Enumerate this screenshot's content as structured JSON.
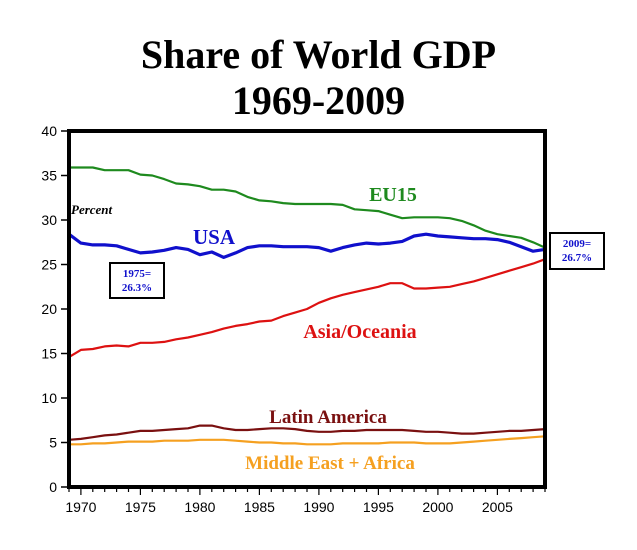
{
  "chart_data": {
    "type": "line",
    "title": [
      "Share of World GDP",
      "1969-2009"
    ],
    "ylabel_annotation": "Percent",
    "ylim": [
      0,
      40
    ],
    "xlim": [
      1969,
      2009
    ],
    "y_ticks": [
      0,
      5,
      10,
      15,
      20,
      25,
      30,
      35,
      40
    ],
    "x_ticks": [
      1970,
      1975,
      1980,
      1985,
      1990,
      1995,
      2000,
      2005
    ],
    "grid": false,
    "series": [
      {
        "name": "EU15",
        "color": "#1e8a1e",
        "x": [
          1969,
          1970,
          1971,
          1972,
          1973,
          1974,
          1975,
          1976,
          1977,
          1978,
          1979,
          1980,
          1981,
          1982,
          1983,
          1984,
          1985,
          1986,
          1987,
          1988,
          1989,
          1990,
          1991,
          1992,
          1993,
          1994,
          1995,
          1996,
          1997,
          1998,
          1999,
          2000,
          2001,
          2002,
          2003,
          2004,
          2005,
          2006,
          2007,
          2008,
          2009
        ],
        "values": [
          35.9,
          35.9,
          35.9,
          35.6,
          35.6,
          35.6,
          35.1,
          35.0,
          34.6,
          34.1,
          34.0,
          33.8,
          33.4,
          33.4,
          33.2,
          32.6,
          32.2,
          32.1,
          31.9,
          31.8,
          31.8,
          31.8,
          31.8,
          31.7,
          31.2,
          31.1,
          31.0,
          30.6,
          30.2,
          30.3,
          30.3,
          30.3,
          30.2,
          29.9,
          29.4,
          28.8,
          28.4,
          28.2,
          28.0,
          27.5,
          26.9
        ]
      },
      {
        "name": "USA",
        "color": "#1010cc",
        "x": [
          1969,
          1970,
          1971,
          1972,
          1973,
          1974,
          1975,
          1976,
          1977,
          1978,
          1979,
          1980,
          1981,
          1982,
          1983,
          1984,
          1985,
          1986,
          1987,
          1988,
          1989,
          1990,
          1991,
          1992,
          1993,
          1994,
          1995,
          1996,
          1997,
          1998,
          1999,
          2000,
          2001,
          2002,
          2003,
          2004,
          2005,
          2006,
          2007,
          2008,
          2009
        ],
        "values": [
          28.4,
          27.4,
          27.2,
          27.2,
          27.1,
          26.7,
          26.3,
          26.4,
          26.6,
          26.9,
          26.7,
          26.1,
          26.4,
          25.8,
          26.3,
          26.9,
          27.1,
          27.1,
          27.0,
          27.0,
          27.0,
          26.9,
          26.5,
          26.9,
          27.2,
          27.4,
          27.3,
          27.4,
          27.6,
          28.2,
          28.4,
          28.2,
          28.1,
          28.0,
          27.9,
          27.9,
          27.8,
          27.5,
          27.0,
          26.5,
          26.7
        ]
      },
      {
        "name": "Asia/Oceania",
        "color": "#dd1111",
        "x": [
          1969,
          1970,
          1971,
          1972,
          1973,
          1974,
          1975,
          1976,
          1977,
          1978,
          1979,
          1980,
          1981,
          1982,
          1983,
          1984,
          1985,
          1986,
          1987,
          1988,
          1989,
          1990,
          1991,
          1992,
          1993,
          1994,
          1995,
          1996,
          1997,
          1998,
          1999,
          2000,
          2001,
          2002,
          2003,
          2004,
          2005,
          2006,
          2007,
          2008,
          2009
        ],
        "values": [
          14.6,
          15.4,
          15.5,
          15.8,
          15.9,
          15.8,
          16.2,
          16.2,
          16.3,
          16.6,
          16.8,
          17.1,
          17.4,
          17.8,
          18.1,
          18.3,
          18.6,
          18.7,
          19.2,
          19.6,
          20.0,
          20.7,
          21.2,
          21.6,
          21.9,
          22.2,
          22.5,
          22.9,
          22.9,
          22.3,
          22.3,
          22.4,
          22.5,
          22.8,
          23.1,
          23.5,
          23.9,
          24.3,
          24.7,
          25.1,
          25.6
        ]
      },
      {
        "name": "Latin America",
        "color": "#7a1010",
        "x": [
          1969,
          1970,
          1971,
          1972,
          1973,
          1974,
          1975,
          1976,
          1977,
          1978,
          1979,
          1980,
          1981,
          1982,
          1983,
          1984,
          1985,
          1986,
          1987,
          1988,
          1989,
          1990,
          1991,
          1992,
          1993,
          1994,
          1995,
          1996,
          1997,
          1998,
          1999,
          2000,
          2001,
          2002,
          2003,
          2004,
          2005,
          2006,
          2007,
          2008,
          2009
        ],
        "values": [
          5.3,
          5.4,
          5.6,
          5.8,
          5.9,
          6.1,
          6.3,
          6.3,
          6.4,
          6.5,
          6.6,
          6.9,
          6.9,
          6.6,
          6.4,
          6.4,
          6.5,
          6.6,
          6.6,
          6.5,
          6.3,
          6.2,
          6.2,
          6.3,
          6.3,
          6.4,
          6.4,
          6.4,
          6.4,
          6.3,
          6.2,
          6.2,
          6.1,
          6.0,
          6.0,
          6.1,
          6.2,
          6.3,
          6.3,
          6.4,
          6.5
        ]
      },
      {
        "name": "Middle East + Africa",
        "color": "#f5a020",
        "x": [
          1969,
          1970,
          1971,
          1972,
          1973,
          1974,
          1975,
          1976,
          1977,
          1978,
          1979,
          1980,
          1981,
          1982,
          1983,
          1984,
          1985,
          1986,
          1987,
          1988,
          1989,
          1990,
          1991,
          1992,
          1993,
          1994,
          1995,
          1996,
          1997,
          1998,
          1999,
          2000,
          2001,
          2002,
          2003,
          2004,
          2005,
          2006,
          2007,
          2008,
          2009
        ],
        "values": [
          4.8,
          4.8,
          4.9,
          4.9,
          5.0,
          5.1,
          5.1,
          5.1,
          5.2,
          5.2,
          5.2,
          5.3,
          5.3,
          5.3,
          5.2,
          5.1,
          5.0,
          5.0,
          4.9,
          4.9,
          4.8,
          4.8,
          4.8,
          4.9,
          4.9,
          4.9,
          4.9,
          5.0,
          5.0,
          5.0,
          4.9,
          4.9,
          4.9,
          5.0,
          5.1,
          5.2,
          5.3,
          5.4,
          5.5,
          5.6,
          5.7
        ]
      }
    ],
    "annotations": [
      {
        "id": "a1975",
        "lines": [
          "1975=",
          "26.3%"
        ],
        "color": "#1010cc"
      },
      {
        "id": "a2009",
        "lines": [
          "2009=",
          "26.7%"
        ],
        "color": "#1010cc"
      }
    ]
  }
}
